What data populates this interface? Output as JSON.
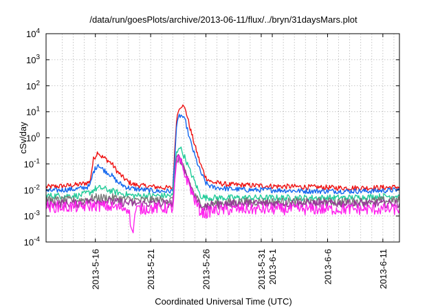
{
  "chart_data": {
    "type": "line",
    "title": "/data/run/goesPlots/archive/2013-06-11/flux/../bryn/31daysMars.plot",
    "xlabel": "Coordinated Universal Time (UTC)",
    "ylabel": "cSv/day",
    "yscale": "log",
    "ylim": [
      0.0001,
      10000
    ],
    "y_ticks": [
      {
        "value": 0.0001,
        "base": "10",
        "exp": "-4"
      },
      {
        "value": 0.001,
        "base": "10",
        "exp": "-3"
      },
      {
        "value": 0.01,
        "base": "10",
        "exp": "-2"
      },
      {
        "value": 0.1,
        "base": "10",
        "exp": "-1"
      },
      {
        "value": 1,
        "base": "10",
        "exp": "0"
      },
      {
        "value": 10,
        "base": "10",
        "exp": "1"
      },
      {
        "value": 100,
        "base": "10",
        "exp": "2"
      },
      {
        "value": 1000,
        "base": "10",
        "exp": "3"
      },
      {
        "value": 10000,
        "base": "10",
        "exp": "4"
      }
    ],
    "xlim": [
      "2013-05-11T13:00",
      "2013-06-12T12:00"
    ],
    "x_ticks": [
      {
        "date": "2013-05-16",
        "label": "2013-5-16"
      },
      {
        "date": "2013-05-21",
        "label": "2013-5-21"
      },
      {
        "date": "2013-05-26",
        "label": "2013-5-26"
      },
      {
        "date": "2013-05-31",
        "label": "2013-5-31"
      },
      {
        "date": "2013-06-01",
        "label": "2013-6-1"
      },
      {
        "date": "2013-06-06",
        "label": "2013-6-6"
      },
      {
        "date": "2013-06-11",
        "label": "2013-6-11"
      }
    ],
    "minor_grid_x": [
      "2013-05-13",
      "2013-05-14",
      "2013-05-15",
      "2013-05-17",
      "2013-05-18",
      "2013-05-19",
      "2013-05-20",
      "2013-05-22",
      "2013-05-23",
      "2013-05-24",
      "2013-05-25",
      "2013-05-27",
      "2013-05-28",
      "2013-05-29",
      "2013-05-30",
      "2013-06-02",
      "2013-06-03",
      "2013-06-04",
      "2013-06-05",
      "2013-06-07",
      "2013-06-08",
      "2013-06-09",
      "2013-06-10",
      "2013-06-12"
    ],
    "grid": true,
    "legend": "none",
    "series": [
      {
        "color": "#ee1111",
        "x": [
          "2013-05-11T13:00",
          "2013-05-13T00:00",
          "2013-05-14T12:00",
          "2013-05-15T12:00",
          "2013-05-15T20:00",
          "2013-05-16T06:00",
          "2013-05-16T12:00",
          "2013-05-17T00:00",
          "2013-05-17T12:00",
          "2013-05-18T00:00",
          "2013-05-18T12:00",
          "2013-05-19T00:00",
          "2013-05-19T12:00",
          "2013-05-20T12:00",
          "2013-05-21T12:00",
          "2013-05-22T12:00",
          "2013-05-22T18:00",
          "2013-05-23T00:00",
          "2013-05-23T08:00",
          "2013-05-23T14:00",
          "2013-05-23T20:00",
          "2013-05-24T04:00",
          "2013-05-24T12:00",
          "2013-05-25T00:00",
          "2013-05-25T12:00",
          "2013-05-26T00:00",
          "2013-05-26T12:00",
          "2013-05-28T00:00",
          "2013-05-30T00:00",
          "2013-06-01T00:00",
          "2013-06-04T00:00",
          "2013-06-07T00:00",
          "2013-06-10T00:00",
          "2013-06-12T12:00"
        ],
        "values": [
          0.013,
          0.014,
          0.016,
          0.02,
          0.15,
          0.3,
          0.2,
          0.15,
          0.1,
          0.05,
          0.03,
          0.02,
          0.016,
          0.014,
          0.013,
          0.012,
          0.012,
          0.012,
          5,
          15,
          18,
          12,
          3,
          0.5,
          0.1,
          0.03,
          0.02,
          0.016,
          0.015,
          0.014,
          0.013,
          0.012,
          0.012,
          0.013
        ]
      },
      {
        "color": "#1166ee",
        "x": [
          "2013-05-11T13:00",
          "2013-05-13T00:00",
          "2013-05-14T12:00",
          "2013-05-15T12:00",
          "2013-05-15T20:00",
          "2013-05-16T06:00",
          "2013-05-16T12:00",
          "2013-05-17T00:00",
          "2013-05-17T12:00",
          "2013-05-18T00:00",
          "2013-05-18T12:00",
          "2013-05-19T00:00",
          "2013-05-19T12:00",
          "2013-05-20T12:00",
          "2013-05-21T12:00",
          "2013-05-22T12:00",
          "2013-05-22T18:00",
          "2013-05-23T00:00",
          "2013-05-23T08:00",
          "2013-05-23T14:00",
          "2013-05-23T20:00",
          "2013-05-24T04:00",
          "2013-05-24T12:00",
          "2013-05-25T00:00",
          "2013-05-25T12:00",
          "2013-05-26T00:00",
          "2013-05-26T12:00",
          "2013-05-28T00:00",
          "2013-05-30T00:00",
          "2013-06-01T00:00",
          "2013-06-04T00:00",
          "2013-06-07T00:00",
          "2013-06-10T00:00",
          "2013-06-12T12:00"
        ],
        "values": [
          0.009,
          0.01,
          0.011,
          0.014,
          0.05,
          0.1,
          0.07,
          0.05,
          0.035,
          0.02,
          0.015,
          0.012,
          0.011,
          0.01,
          0.009,
          0.009,
          0.009,
          0.009,
          2.5,
          7,
          7,
          4,
          1,
          0.2,
          0.05,
          0.018,
          0.013,
          0.011,
          0.01,
          0.01,
          0.009,
          0.009,
          0.009,
          0.01
        ]
      },
      {
        "color": "#22cc99",
        "x": [
          "2013-05-11T13:00",
          "2013-05-13T00:00",
          "2013-05-14T12:00",
          "2013-05-15T12:00",
          "2013-05-16T00:00",
          "2013-05-16T12:00",
          "2013-05-17T12:00",
          "2013-05-18T12:00",
          "2013-05-19T12:00",
          "2013-05-21T12:00",
          "2013-05-22T18:00",
          "2013-05-23T00:00",
          "2013-05-23T08:00",
          "2013-05-23T14:00",
          "2013-05-23T20:00",
          "2013-05-24T04:00",
          "2013-05-24T12:00",
          "2013-05-25T00:00",
          "2013-05-25T12:00",
          "2013-05-26T00:00",
          "2013-05-26T12:00",
          "2013-05-28T00:00",
          "2013-05-31T00:00",
          "2013-06-04T00:00",
          "2013-06-08T00:00",
          "2013-06-12T12:00"
        ],
        "values": [
          0.006,
          0.006,
          0.006,
          0.008,
          0.011,
          0.012,
          0.009,
          0.007,
          0.006,
          0.006,
          0.006,
          0.006,
          0.25,
          0.5,
          0.3,
          0.15,
          0.06,
          0.02,
          0.006,
          0.005,
          0.005,
          0.005,
          0.005,
          0.005,
          0.005,
          0.006
        ]
      },
      {
        "color": "#777777",
        "x": [
          "2013-05-11T13:00",
          "2013-05-14T12:00",
          "2013-05-16T00:00",
          "2013-05-17T12:00",
          "2013-05-19T12:00",
          "2013-05-22T18:00",
          "2013-05-23T00:00",
          "2013-05-23T08:00",
          "2013-05-23T14:00",
          "2013-05-24T00:00",
          "2013-05-24T12:00",
          "2013-05-25T00:00",
          "2013-05-25T12:00",
          "2013-05-26T00:00",
          "2013-05-26T12:00",
          "2013-05-29T00:00",
          "2013-06-03T00:00",
          "2013-06-08T00:00",
          "2013-06-12T12:00"
        ],
        "values": [
          0.004,
          0.004,
          0.005,
          0.005,
          0.004,
          0.004,
          0.004,
          0.12,
          0.18,
          0.06,
          0.02,
          0.006,
          0.003,
          0.0025,
          0.003,
          0.0035,
          0.0035,
          0.0035,
          0.004
        ]
      },
      {
        "color": "#993399",
        "x": [
          "2013-05-11T13:00",
          "2013-05-14T12:00",
          "2013-05-16T00:00",
          "2013-05-17T12:00",
          "2013-05-19T12:00",
          "2013-05-22T18:00",
          "2013-05-23T00:00",
          "2013-05-23T08:00",
          "2013-05-23T14:00",
          "2013-05-24T00:00",
          "2013-05-24T12:00",
          "2013-05-25T00:00",
          "2013-05-25T12:00",
          "2013-05-26T00:00",
          "2013-05-26T12:00",
          "2013-05-29T00:00",
          "2013-06-03T00:00",
          "2013-06-08T00:00",
          "2013-06-12T12:00"
        ],
        "values": [
          0.003,
          0.003,
          0.004,
          0.0035,
          0.003,
          0.003,
          0.003,
          0.15,
          0.2,
          0.07,
          0.02,
          0.005,
          0.0025,
          0.002,
          0.0025,
          0.003,
          0.003,
          0.003,
          0.003
        ]
      },
      {
        "color": "#ff22ee",
        "x": [
          "2013-05-11T13:00",
          "2013-05-13T00:00",
          "2013-05-14T12:00",
          "2013-05-16T00:00",
          "2013-05-17T12:00",
          "2013-05-19T00:00",
          "2013-05-19T08:00",
          "2013-05-19T16:00",
          "2013-05-21T12:00",
          "2013-05-22T18:00",
          "2013-05-23T00:00",
          "2013-05-23T08:00",
          "2013-05-23T14:00",
          "2013-05-24T00:00",
          "2013-05-24T12:00",
          "2013-05-25T00:00",
          "2013-05-25T12:00",
          "2013-05-26T00:00",
          "2013-05-26T12:00",
          "2013-05-29T00:00",
          "2013-06-03T00:00",
          "2013-06-08T00:00",
          "2013-06-12T12:00"
        ],
        "values": [
          0.0022,
          0.0022,
          0.0022,
          0.0025,
          0.0022,
          0.002,
          0.0002,
          0.0018,
          0.002,
          0.002,
          0.002,
          0.1,
          0.15,
          0.05,
          0.015,
          0.004,
          0.0015,
          0.0012,
          0.0016,
          0.0018,
          0.0018,
          0.0018,
          0.0018
        ]
      }
    ]
  }
}
